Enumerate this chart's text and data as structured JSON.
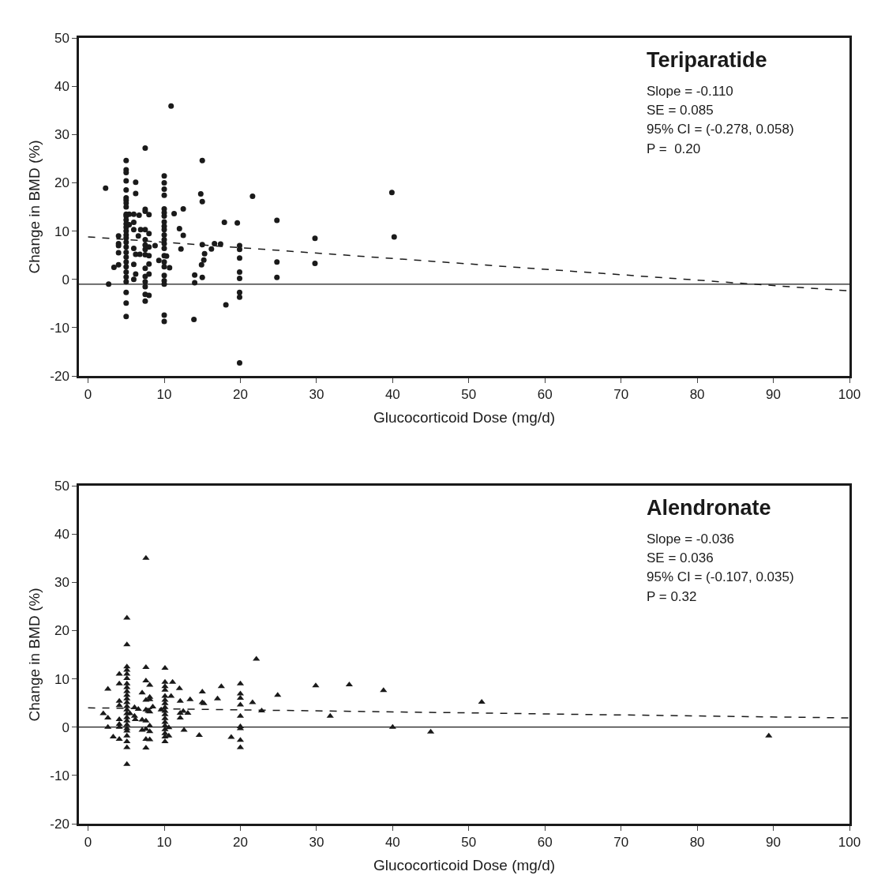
{
  "chart_data": [
    {
      "type": "scatter",
      "title": "Teriparatide",
      "xlabel": "Glucocorticoid Dose (mg/d)",
      "ylabel": "Change in BMD (%)",
      "annotations": [
        "Slope = -0.110",
        "SE = 0.085",
        "95% CI = (-0.278, 0.058)",
        "P =  0.20"
      ],
      "xlim": [
        -1.2,
        100
      ],
      "xticks": [
        0,
        10,
        20,
        30,
        40,
        50,
        60,
        70,
        80,
        90,
        100
      ],
      "ylim": [
        -20,
        50
      ],
      "yticks": [
        -20,
        -10,
        0,
        10,
        20,
        30,
        40,
        50
      ],
      "ref_lines": [
        {
          "axis": "y",
          "value": -1,
          "color": "#1a1a1a",
          "line_style": "solid"
        }
      ],
      "series": [
        {
          "marker": "circle",
          "color": "#1a1a1a",
          "x": [
            2.3,
            2.7,
            3.4,
            4.0,
            4.0,
            4.0,
            4.0,
            4.0,
            5.0,
            5.0,
            5.0,
            5.0,
            5.0,
            5.0,
            5.0,
            5.0,
            5.0,
            5.0,
            5.0,
            5.0,
            5.0,
            5.0,
            5.0,
            5.0,
            5.0,
            5.0,
            5.0,
            5.0,
            5.0,
            5.0,
            5.0,
            5.0,
            5.0,
            5.0,
            5.0,
            5.0,
            5.0,
            5.4,
            5.4,
            6.0,
            6.0,
            6.0,
            6.0,
            6.25,
            6.0,
            6.25,
            6.0,
            6.25,
            6.25,
            6.7,
            6.6,
            6.9,
            6.8,
            7.5,
            7.5,
            7.5,
            7.5,
            7.5,
            7.5,
            7.5,
            7.5,
            7.5,
            7.5,
            7.5,
            7.5,
            7.5,
            7.5,
            8.0,
            8.0,
            8.0,
            8.0,
            8.0,
            8.0,
            8.0,
            8.8,
            9.3,
            10.0,
            10.0,
            10.0,
            10.0,
            10.0,
            10.0,
            10.0,
            10.0,
            10.0,
            10.0,
            10.0,
            10.0,
            10.0,
            10.0,
            10.0,
            10.0,
            10.0,
            10.0,
            10.0,
            10.0,
            10.0,
            10.0,
            10.3,
            10.7,
            10.9,
            11.3,
            12.0,
            12.2,
            12.5,
            12.5,
            13.9,
            14.0,
            14.0,
            14.8,
            15.0,
            15.0,
            15.0,
            15.3,
            15.2,
            14.9,
            15.0,
            16.2,
            16.6,
            17.4,
            17.9,
            18.1,
            19.6,
            19.9,
            19.9,
            19.9,
            19.9,
            19.9,
            19.9,
            19.9,
            19.9,
            21.6,
            24.8,
            24.8,
            24.8,
            29.8,
            29.8,
            39.9,
            40.2
          ],
          "values": [
            18.9,
            -1.0,
            2.5,
            9.0,
            7.4,
            7.0,
            5.5,
            3.0,
            24.6,
            22.7,
            22.1,
            20.4,
            18.5,
            16.9,
            16.4,
            15.8,
            15.0,
            13.5,
            13.1,
            12.3,
            11.5,
            10.8,
            10.0,
            9.2,
            8.6,
            7.7,
            6.7,
            5.6,
            4.6,
            3.6,
            2.6,
            1.5,
            0.5,
            -0.5,
            -2.7,
            -4.9,
            -7.7,
            13.5,
            11.3,
            13.5,
            11.8,
            10.3,
            6.4,
            5.2,
            3.1,
            1.1,
            0.0,
            20.1,
            17.8,
            13.3,
            9.0,
            10.3,
            5.2,
            27.2,
            14.5,
            14.1,
            10.3,
            8.2,
            7.1,
            6.2,
            5.1,
            2.3,
            0.6,
            -0.5,
            -1.5,
            -3.1,
            -4.5,
            13.4,
            9.5,
            6.7,
            4.9,
            3.2,
            1.1,
            -3.3,
            7.0,
            3.9,
            21.4,
            20.0,
            18.7,
            17.4,
            14.6,
            13.8,
            13.1,
            11.9,
            11.0,
            10.3,
            9.2,
            8.2,
            7.4,
            6.4,
            4.9,
            3.6,
            2.6,
            0.8,
            -0.3,
            -1.0,
            -7.4,
            -8.7,
            4.8,
            2.4,
            35.9,
            13.6,
            10.5,
            6.3,
            14.6,
            9.1,
            -8.3,
            0.9,
            -0.7,
            17.7,
            24.6,
            16.1,
            7.2,
            5.3,
            4.0,
            3.0,
            0.4,
            6.3,
            7.4,
            7.3,
            11.8,
            -5.3,
            11.7,
            7.0,
            6.2,
            4.4,
            1.5,
            0.2,
            -2.7,
            -3.7,
            -17.3,
            17.2,
            12.2,
            3.6,
            0.4,
            8.5,
            3.3,
            18.0,
            8.8
          ]
        },
        {
          "type": "line",
          "marker": "none",
          "line_style": "dashed",
          "color": "#1a1a1a",
          "x": [
            0,
            100
          ],
          "values": [
            8.8,
            -2.4
          ]
        }
      ]
    },
    {
      "type": "scatter",
      "title": "Alendronate",
      "xlabel": "Glucocorticoid Dose (mg/d)",
      "ylabel": "Change in BMD (%)",
      "annotations": [
        "Slope = -0.036",
        "SE = 0.036",
        "95% CI = (-0.107, 0.035)",
        "P = 0.32"
      ],
      "xlim": [
        -1.2,
        100
      ],
      "xticks": [
        0,
        10,
        20,
        30,
        40,
        50,
        60,
        70,
        80,
        90,
        100
      ],
      "ylim": [
        -20,
        50
      ],
      "yticks": [
        -20,
        -10,
        0,
        10,
        20,
        30,
        40,
        50
      ],
      "ref_lines": [
        {
          "axis": "y",
          "value": 0,
          "color": "#1a1a1a",
          "line_style": "solid"
        }
      ],
      "series": [
        {
          "marker": "triangle",
          "color": "#1a1a1a",
          "x": [
            2.0,
            2.6,
            2.6,
            2.6,
            3.3,
            4.1,
            4.1,
            4.1,
            4.1,
            4.1,
            4.1,
            4.1,
            4.1,
            5.1,
            5.1,
            5.1,
            5.1,
            5.1,
            5.1,
            5.1,
            5.1,
            5.1,
            5.1,
            5.1,
            5.1,
            5.1,
            5.1,
            5.1,
            5.1,
            5.1,
            5.1,
            5.1,
            5.1,
            5.1,
            5.1,
            5.1,
            5.1,
            5.5,
            6.1,
            6.1,
            6.2,
            6.6,
            7.1,
            7.1,
            7.1,
            7.6,
            7.6,
            7.6,
            7.6,
            7.6,
            7.6,
            7.6,
            7.6,
            7.6,
            8.1,
            8.1,
            8.1,
            8.1,
            8.1,
            8.1,
            8.1,
            7.9,
            8.5,
            10.1,
            10.1,
            10.1,
            10.1,
            10.1,
            10.1,
            10.1,
            10.1,
            10.1,
            10.1,
            10.1,
            10.1,
            10.1,
            10.1,
            10.1,
            10.1,
            10.1,
            9.6,
            10.6,
            10.6,
            10.9,
            11.1,
            12.0,
            12.1,
            12.1,
            12.1,
            12.5,
            13.1,
            12.6,
            13.4,
            14.6,
            15.0,
            15.0,
            15.2,
            17.0,
            17.5,
            18.8,
            20.0,
            20.0,
            20.0,
            20.0,
            20.0,
            20.0,
            20.0,
            20.0,
            20.0,
            21.6,
            22.1,
            22.8,
            24.9,
            29.9,
            31.8,
            34.3,
            38.8,
            40.0,
            45.0,
            51.7,
            89.4
          ],
          "values": [
            2.8,
            7.9,
            1.9,
            0.0,
            -2.0,
            11.0,
            9.0,
            5.4,
            4.5,
            1.6,
            0.6,
            0.0,
            -2.5,
            22.6,
            17.1,
            12.5,
            11.8,
            11.0,
            10.1,
            9.0,
            8.2,
            7.4,
            6.6,
            5.9,
            5.1,
            4.3,
            3.6,
            2.8,
            2.0,
            1.3,
            0.5,
            -0.3,
            -0.8,
            -1.8,
            -3.0,
            -4.2,
            -7.7,
            2.8,
            4.1,
            2.3,
            1.6,
            3.7,
            7.1,
            1.5,
            -0.6,
            35.0,
            12.4,
            9.6,
            5.6,
            3.6,
            1.3,
            -0.4,
            -2.5,
            -4.3,
            8.7,
            6.2,
            5.7,
            0.3,
            -0.9,
            -2.6,
            3.2,
            3.3,
            4.2,
            12.2,
            9.3,
            8.4,
            7.7,
            6.4,
            5.6,
            4.9,
            4.1,
            3.3,
            2.6,
            1.8,
            1.0,
            0.3,
            -0.5,
            -1.3,
            -2.0,
            -3.0,
            3.6,
            -1.8,
            -0.1,
            6.4,
            9.3,
            8.0,
            5.4,
            1.9,
            2.9,
            3.3,
            2.9,
            -0.6,
            5.7,
            -1.7,
            7.3,
            5.1,
            4.9,
            5.9,
            8.4,
            -2.1,
            9.0,
            6.9,
            6.0,
            4.6,
            2.3,
            0.1,
            -0.3,
            -2.7,
            -4.2,
            5.1,
            14.1,
            3.4,
            6.6,
            8.6,
            2.3,
            8.8,
            7.6,
            0.0,
            -1.0,
            5.2,
            -1.8
          ]
        },
        {
          "type": "line",
          "marker": "none",
          "line_style": "dashed",
          "color": "#1a1a1a",
          "x": [
            0,
            100
          ],
          "values": [
            4.0,
            1.9
          ]
        }
      ]
    }
  ]
}
